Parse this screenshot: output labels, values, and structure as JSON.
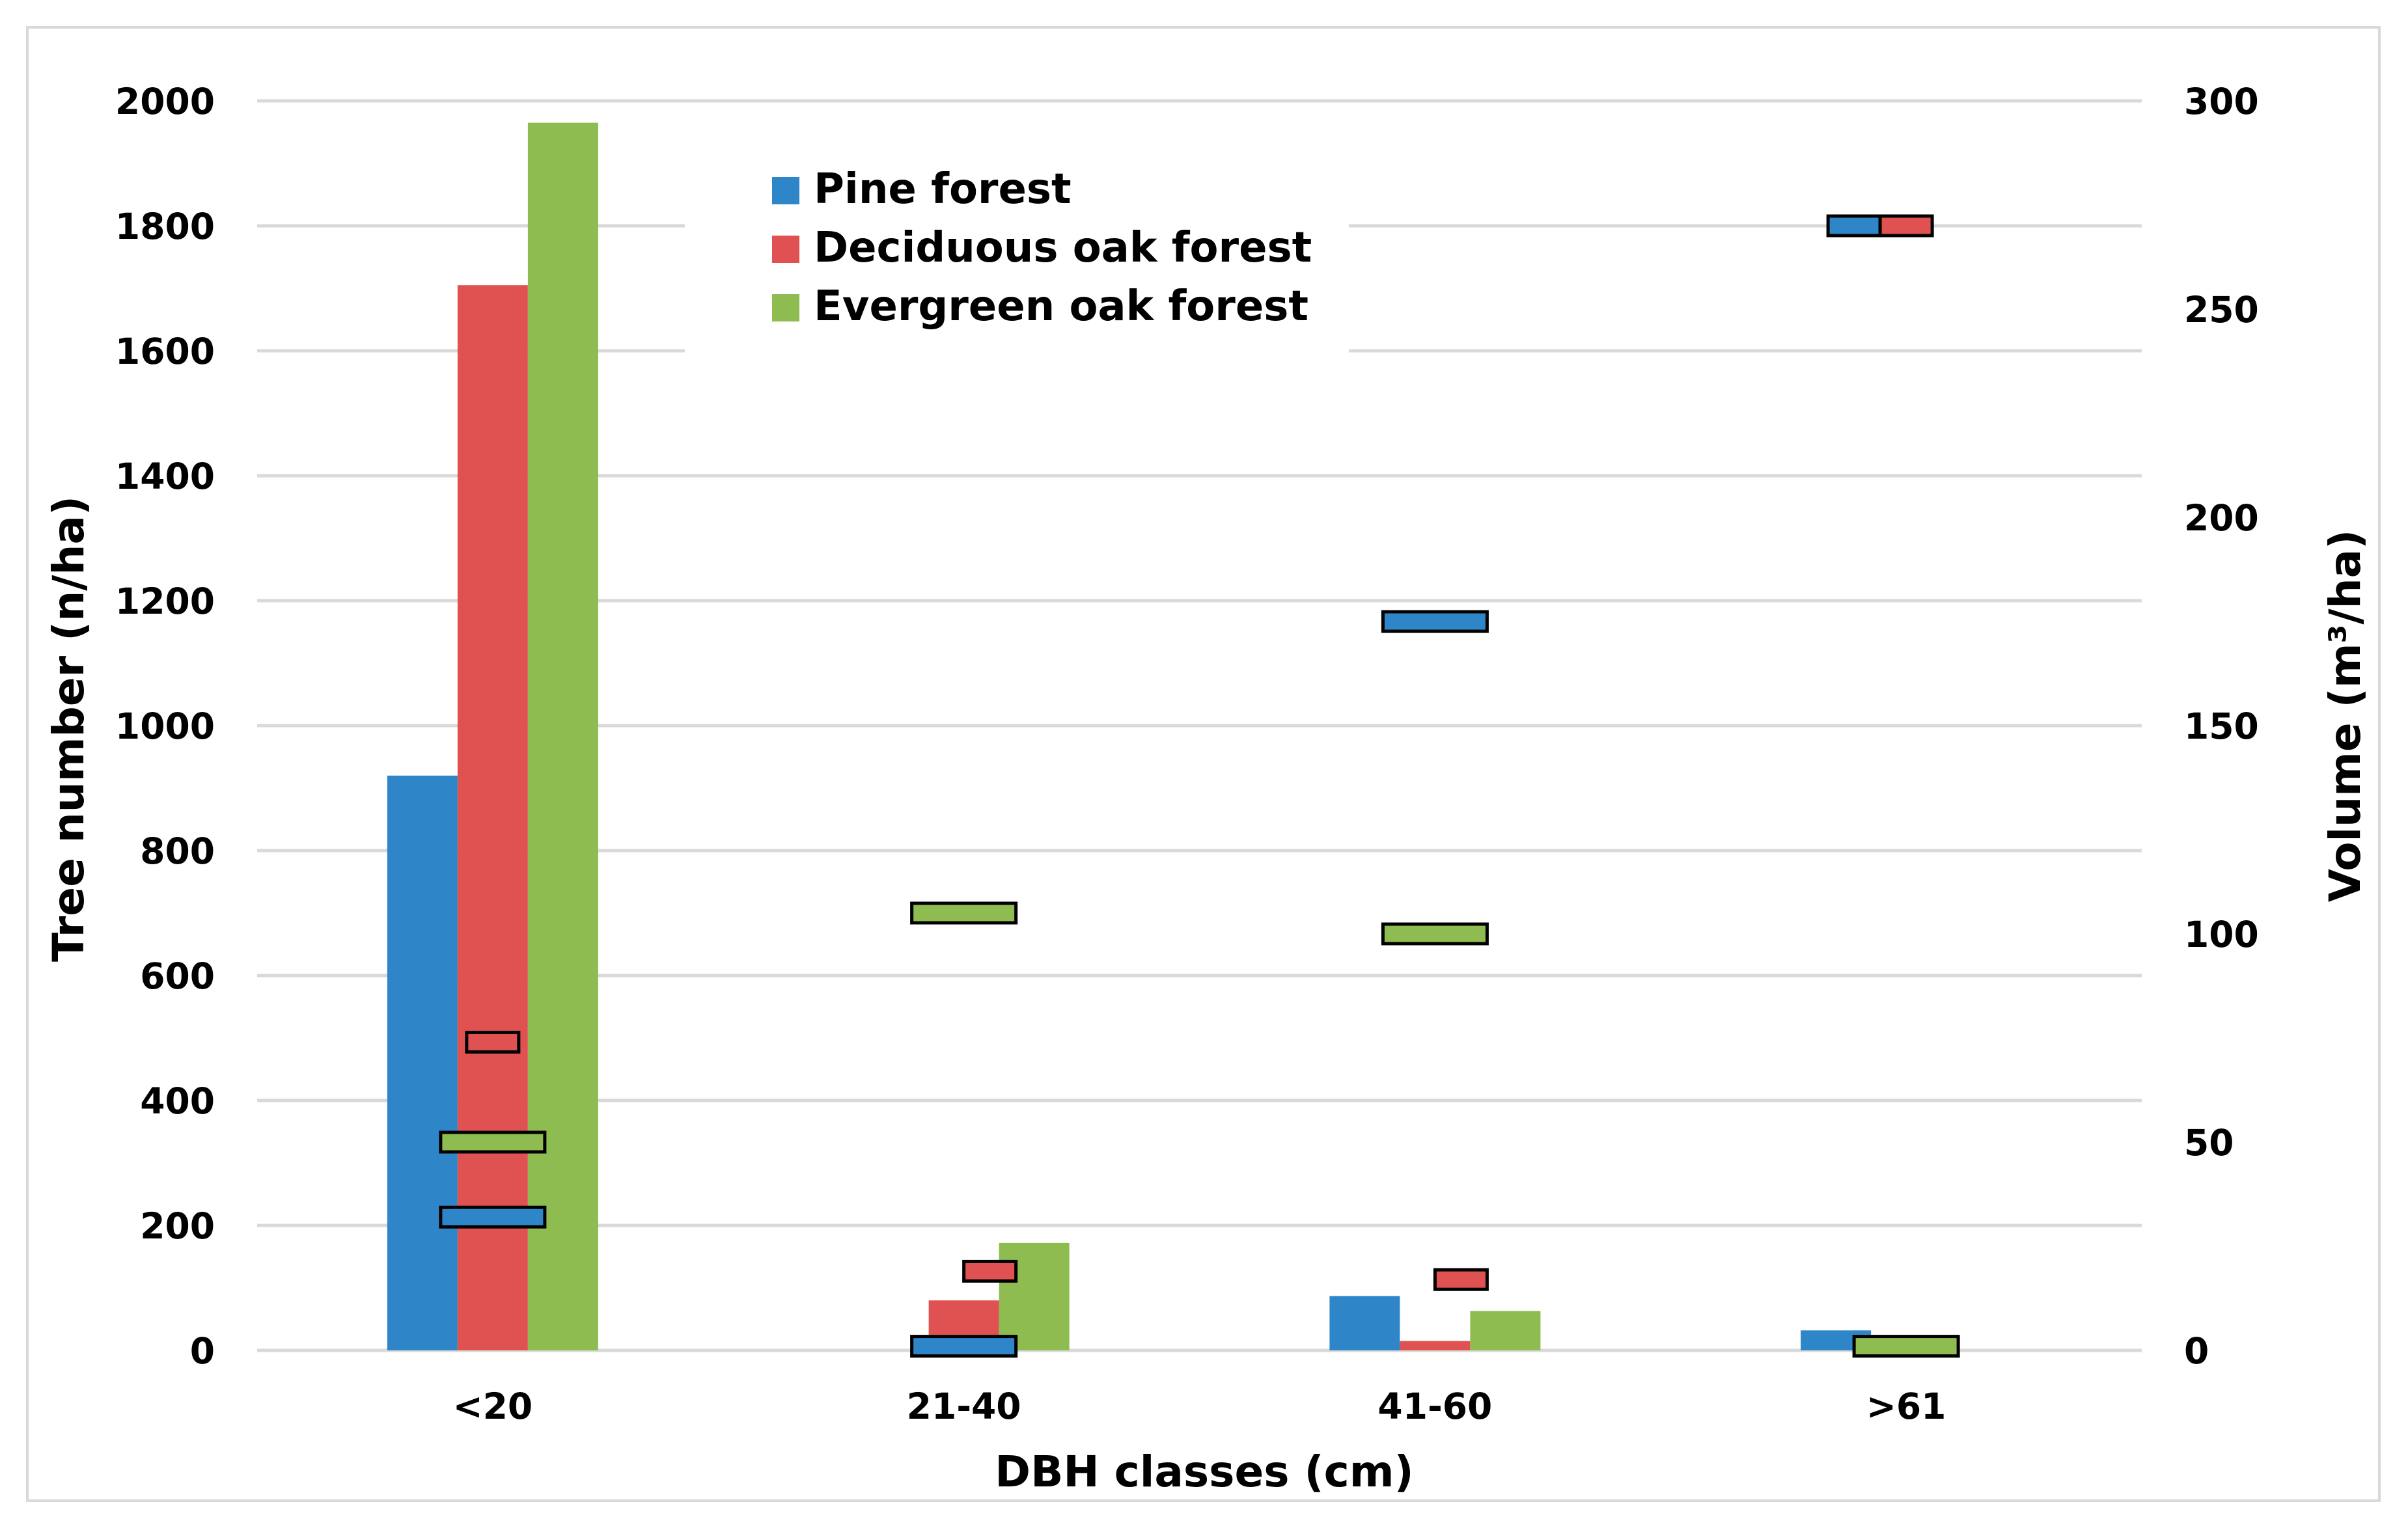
{
  "chart_data": {
    "type": "bar",
    "xlabel": "DBH classes (cm)",
    "ylabel": "Tree number (n/ha)",
    "y2label": "Volume (m³/ha)",
    "ylim": [
      0,
      2000
    ],
    "y2lim": [
      0,
      300
    ],
    "yticks": [
      "0",
      "200",
      "400",
      "600",
      "800",
      "1000",
      "1200",
      "1400",
      "1600",
      "1800",
      "2000"
    ],
    "y2ticks": [
      "0",
      "50",
      "100",
      "150",
      "200",
      "250",
      "300"
    ],
    "categories": [
      "<20",
      "21-40",
      "41-60",
      ">61"
    ],
    "grid": true,
    "legend_position": "top-center",
    "series": [
      {
        "name": "Pine forest",
        "color": "#2e86c8",
        "values": [
          920,
          0,
          87,
          32
        ],
        "volume": [
          32,
          1,
          175,
          270
        ]
      },
      {
        "name": "Deciduous oak forest",
        "color": "#e05252",
        "values": [
          1705,
          80,
          15,
          0
        ],
        "volume": [
          74,
          19,
          17,
          270
        ]
      },
      {
        "name": "Evergreen oak forest",
        "color": "#8fbc50",
        "values": [
          1965,
          172,
          63,
          0
        ],
        "volume": [
          50,
          105,
          100,
          1
        ]
      }
    ]
  }
}
